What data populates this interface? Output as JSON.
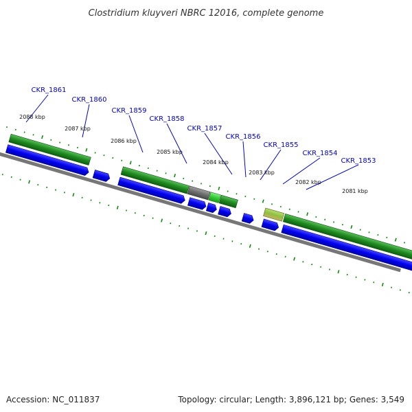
{
  "header": {
    "title": "Clostridium kluyveri NBRC 12016, complete genome"
  },
  "footer": {
    "accession": "Accession: NC_011837",
    "stats": "Topology: circular; Length: 3,896,121 bp; Genes: 3,549"
  },
  "genes": [
    {
      "id": "CKR_1861",
      "color": "#1f8a1f"
    },
    {
      "id": "CKR_1860",
      "color": "#1f8a1f"
    },
    {
      "id": "CKR_1859",
      "color": "#0000ee"
    },
    {
      "id": "CKR_1858",
      "color": "#1f8a1f"
    },
    {
      "id": "CKR_1857",
      "color": "#6e6e6e"
    },
    {
      "id": "CKR_1856",
      "color": "#33cc33"
    },
    {
      "id": "CKR_1855",
      "color": "#0000ee"
    },
    {
      "id": "CKR_1854",
      "color": "#8fbf3f"
    },
    {
      "id": "CKR_1853",
      "color": "#1f8a1f"
    }
  ],
  "scale_labels": [
    "2088 kbp",
    "2087 kbp",
    "2086 kbp",
    "2085 kbp",
    "2084 kbp",
    "2083 kbp",
    "2082 kbp",
    "2081 kbp"
  ],
  "colors": {
    "forward_strand": "#1f8a1f",
    "reverse_strand": "#0000ee",
    "backbone": "#777777",
    "tick": "#118811",
    "locus_label": "#0000cc"
  }
}
